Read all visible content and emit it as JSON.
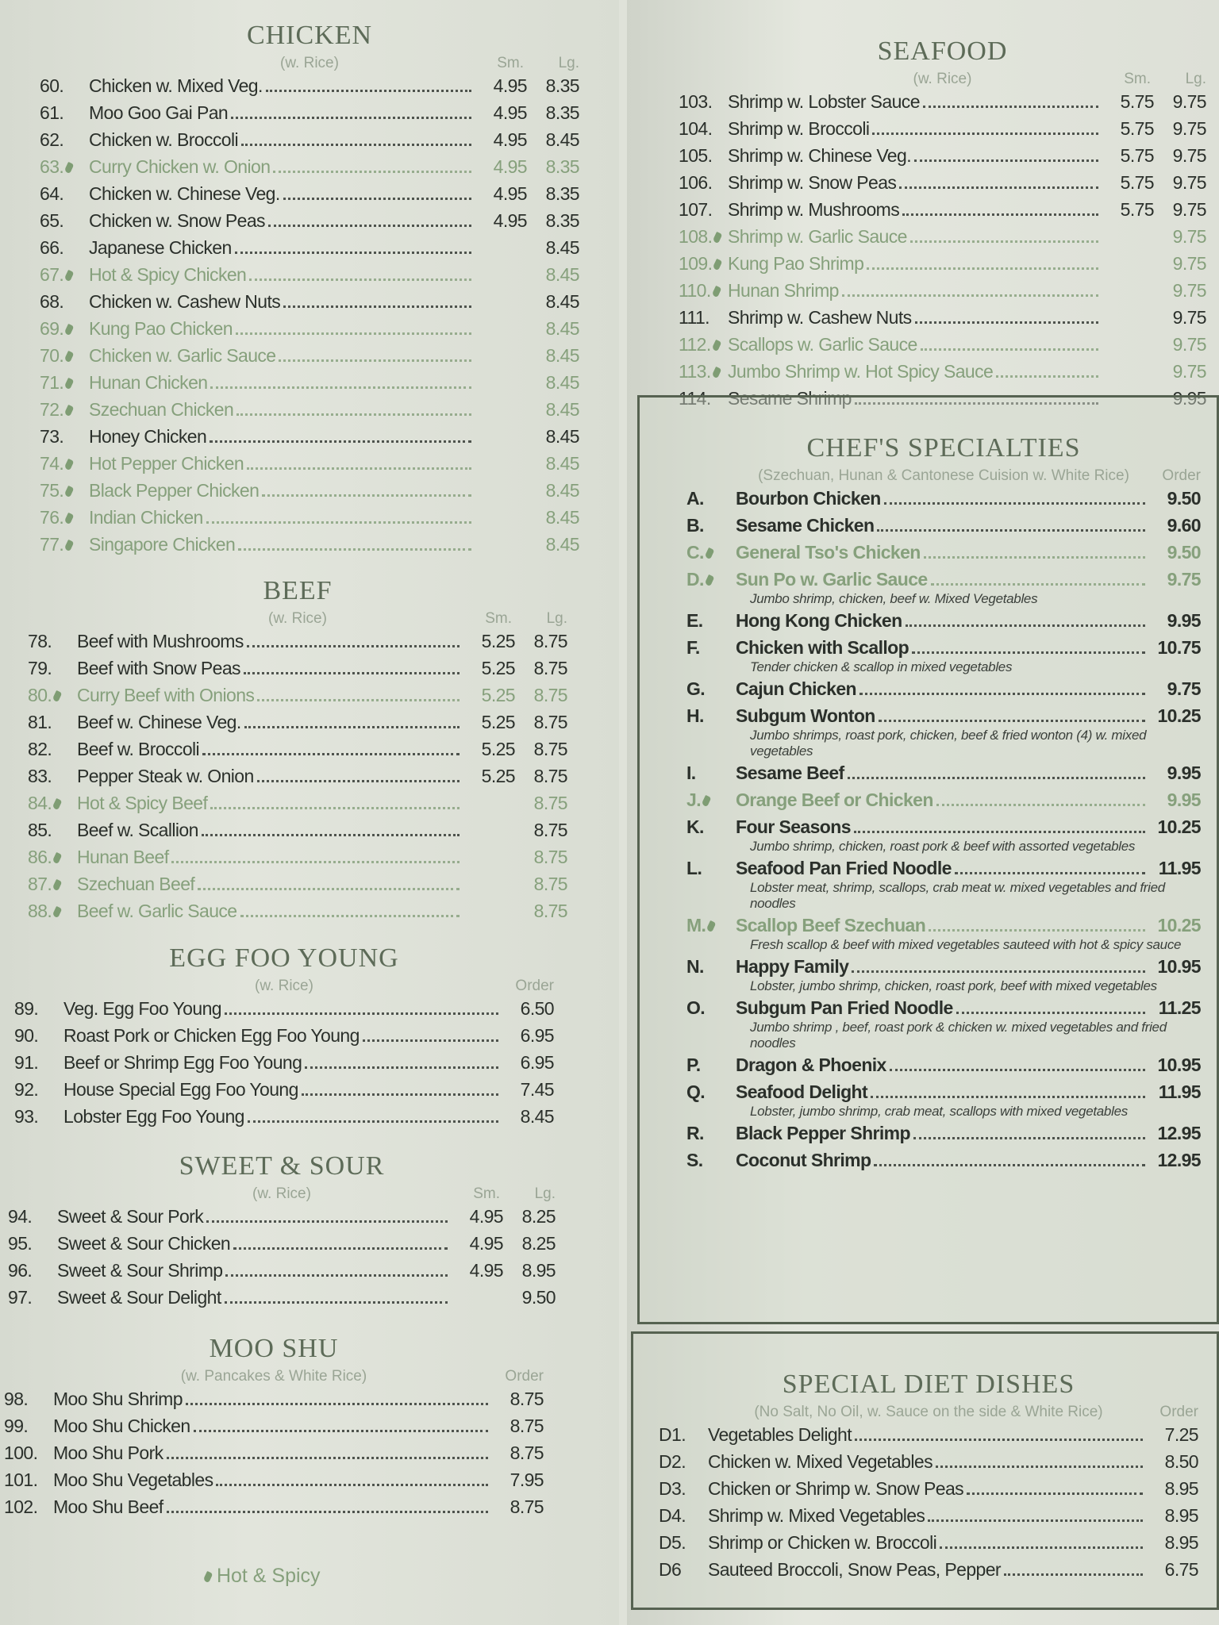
{
  "legend": {
    "label": "Hot & Spicy",
    "icon": "pepper-icon"
  },
  "colors": {
    "text": "#2b302b",
    "spicy": "#86a07c",
    "heading": "#5d6b58",
    "box_border": "#566251"
  },
  "sections": {
    "chicken": {
      "title": "CHICKEN",
      "subtitle": "(w. Rice)",
      "col1": "Sm.",
      "col2": "Lg.",
      "items": [
        {
          "num": "60.",
          "name": "Chicken w. Mixed Veg.",
          "sm": "4.95",
          "lg": "8.35"
        },
        {
          "num": "61.",
          "name": "Moo Goo Gai Pan",
          "sm": "4.95",
          "lg": "8.35"
        },
        {
          "num": "62.",
          "name": "Chicken w. Broccoli",
          "sm": "4.95",
          "lg": "8.45"
        },
        {
          "num": "63.",
          "name": "Curry Chicken w. Onion",
          "sm": "4.95",
          "lg": "8.35",
          "spicy": true
        },
        {
          "num": "64.",
          "name": "Chicken w. Chinese Veg.",
          "sm": "4.95",
          "lg": "8.35"
        },
        {
          "num": "65.",
          "name": "Chicken w. Snow Peas",
          "sm": "4.95",
          "lg": "8.35"
        },
        {
          "num": "66.",
          "name": "Japanese Chicken",
          "sm": "",
          "lg": "8.45"
        },
        {
          "num": "67.",
          "name": "Hot & Spicy Chicken",
          "sm": "",
          "lg": "8.45",
          "spicy": true
        },
        {
          "num": "68.",
          "name": "Chicken w. Cashew Nuts",
          "sm": "",
          "lg": "8.45"
        },
        {
          "num": "69.",
          "name": "Kung Pao Chicken",
          "sm": "",
          "lg": "8.45",
          "spicy": true
        },
        {
          "num": "70.",
          "name": "Chicken w. Garlic Sauce",
          "sm": "",
          "lg": "8.45",
          "spicy": true
        },
        {
          "num": "71.",
          "name": "Hunan Chicken",
          "sm": "",
          "lg": "8.45",
          "spicy": true
        },
        {
          "num": "72.",
          "name": "Szechuan Chicken",
          "sm": "",
          "lg": "8.45",
          "spicy": true
        },
        {
          "num": "73.",
          "name": "Honey Chicken",
          "sm": "",
          "lg": "8.45"
        },
        {
          "num": "74.",
          "name": "Hot Pepper Chicken",
          "sm": "",
          "lg": "8.45",
          "spicy": true
        },
        {
          "num": "75.",
          "name": "Black Pepper Chicken",
          "sm": "",
          "lg": "8.45",
          "spicy": true
        },
        {
          "num": "76.",
          "name": "Indian Chicken",
          "sm": "",
          "lg": "8.45",
          "spicy": true
        },
        {
          "num": "77.",
          "name": "Singapore Chicken",
          "sm": "",
          "lg": "8.45",
          "spicy": true
        }
      ]
    },
    "beef": {
      "title": "BEEF",
      "subtitle": "(w. Rice)",
      "col1": "Sm.",
      "col2": "Lg.",
      "items": [
        {
          "num": "78.",
          "name": "Beef with Mushrooms",
          "sm": "5.25",
          "lg": "8.75"
        },
        {
          "num": "79.",
          "name": "Beef with Snow Peas",
          "sm": "5.25",
          "lg": "8.75"
        },
        {
          "num": "80.",
          "name": "Curry Beef with Onions",
          "sm": "5.25",
          "lg": "8.75",
          "spicy": true
        },
        {
          "num": "81.",
          "name": "Beef w. Chinese Veg.",
          "sm": "5.25",
          "lg": "8.75"
        },
        {
          "num": "82.",
          "name": "Beef w. Broccoli",
          "sm": "5.25",
          "lg": "8.75"
        },
        {
          "num": "83.",
          "name": "Pepper Steak w. Onion",
          "sm": "5.25",
          "lg": "8.75"
        },
        {
          "num": "84.",
          "name": "Hot & Spicy Beef",
          "sm": "",
          "lg": "8.75",
          "spicy": true
        },
        {
          "num": "85.",
          "name": "Beef w. Scallion",
          "sm": "",
          "lg": "8.75"
        },
        {
          "num": "86.",
          "name": "Hunan Beef",
          "sm": "",
          "lg": "8.75",
          "spicy": true
        },
        {
          "num": "87.",
          "name": "Szechuan Beef",
          "sm": "",
          "lg": "8.75",
          "spicy": true
        },
        {
          "num": "88.",
          "name": "Beef w. Garlic Sauce",
          "sm": "",
          "lg": "8.75",
          "spicy": true
        }
      ]
    },
    "egg_foo_young": {
      "title": "EGG FOO YOUNG",
      "subtitle": "(w. Rice)",
      "col2": "Order",
      "items": [
        {
          "num": "89.",
          "name": "Veg. Egg Foo Young",
          "lg": "6.50"
        },
        {
          "num": "90.",
          "name": "Roast Pork or Chicken Egg Foo Young",
          "lg": "6.95"
        },
        {
          "num": "91.",
          "name": "Beef or Shrimp Egg Foo Young",
          "lg": "6.95"
        },
        {
          "num": "92.",
          "name": "House Special Egg Foo Young",
          "lg": "7.45"
        },
        {
          "num": "93.",
          "name": "Lobster Egg Foo Young",
          "lg": "8.45"
        }
      ]
    },
    "sweet_sour": {
      "title": "SWEET & SOUR",
      "subtitle": "(w. Rice)",
      "col1": "Sm.",
      "col2": "Lg.",
      "items": [
        {
          "num": "94.",
          "name": "Sweet & Sour Pork",
          "sm": "4.95",
          "lg": "8.25"
        },
        {
          "num": "95.",
          "name": "Sweet & Sour Chicken",
          "sm": "4.95",
          "lg": "8.25"
        },
        {
          "num": "96.",
          "name": "Sweet & Sour Shrimp",
          "sm": "4.95",
          "lg": "8.95"
        },
        {
          "num": "97.",
          "name": "Sweet & Sour Delight",
          "sm": "",
          "lg": "9.50"
        }
      ]
    },
    "moo_shu": {
      "title": "MOO SHU",
      "subtitle": "(w. Pancakes & White Rice)",
      "col2": "Order",
      "items": [
        {
          "num": "98.",
          "name": "Moo Shu Shrimp",
          "lg": "8.75"
        },
        {
          "num": "99.",
          "name": "Moo Shu Chicken",
          "lg": "8.75"
        },
        {
          "num": "100.",
          "name": "Moo Shu Pork",
          "lg": "8.75"
        },
        {
          "num": "101.",
          "name": "Moo Shu Vegetables",
          "lg": "7.95"
        },
        {
          "num": "102.",
          "name": "Moo Shu Beef",
          "lg": "8.75"
        }
      ]
    },
    "seafood": {
      "title": "SEAFOOD",
      "subtitle": "(w. Rice)",
      "col1": "Sm.",
      "col2": "Lg.",
      "items": [
        {
          "num": "103.",
          "name": "Shrimp w. Lobster Sauce",
          "sm": "5.75",
          "lg": "9.75"
        },
        {
          "num": "104.",
          "name": "Shrimp w. Broccoli",
          "sm": "5.75",
          "lg": "9.75"
        },
        {
          "num": "105.",
          "name": "Shrimp w. Chinese Veg.",
          "sm": "5.75",
          "lg": "9.75"
        },
        {
          "num": "106.",
          "name": "Shrimp w. Snow Peas",
          "sm": "5.75",
          "lg": "9.75"
        },
        {
          "num": "107.",
          "name": "Shrimp w. Mushrooms",
          "sm": "5.75",
          "lg": "9.75"
        },
        {
          "num": "108.",
          "name": "Shrimp w. Garlic Sauce",
          "sm": "",
          "lg": "9.75",
          "spicy": true
        },
        {
          "num": "109.",
          "name": "Kung Pao Shrimp",
          "sm": "",
          "lg": "9.75",
          "spicy": true
        },
        {
          "num": "110.",
          "name": "Hunan Shrimp",
          "sm": "",
          "lg": "9.75",
          "spicy": true
        },
        {
          "num": "111.",
          "name": "Shrimp w. Cashew Nuts",
          "sm": "",
          "lg": "9.75"
        },
        {
          "num": "112.",
          "name": "Scallops w. Garlic Sauce",
          "sm": "",
          "lg": "9.75",
          "spicy": true
        },
        {
          "num": "113.",
          "name": "Jumbo Shrimp w. Hot Spicy Sauce",
          "sm": "",
          "lg": "9.75",
          "spicy": true
        },
        {
          "num": "114.",
          "name": "Sesame Shrimp",
          "sm": "",
          "lg": "9.95"
        }
      ]
    },
    "chefs": {
      "title": "CHEF'S SPECIALTIES",
      "subtitle": "(Szechuan, Hunan & Cantonese Cuision w. White Rice)",
      "col2": "Order",
      "items": [
        {
          "num": "A.",
          "name": "Bourbon Chicken",
          "lg": "9.50"
        },
        {
          "num": "B.",
          "name": "Sesame Chicken",
          "lg": "9.60"
        },
        {
          "num": "C.",
          "name": "General Tso's Chicken",
          "lg": "9.50",
          "spicy": true
        },
        {
          "num": "D.",
          "name": "Sun Po w. Garlic Sauce",
          "lg": "9.75",
          "spicy": true,
          "desc": "Jumbo shrimp, chicken, beef w. Mixed Vegetables"
        },
        {
          "num": "E.",
          "name": "Hong Kong Chicken",
          "lg": "9.95"
        },
        {
          "num": "F.",
          "name": "Chicken with Scallop",
          "lg": "10.75",
          "desc": "Tender chicken & scallop in mixed vegetables"
        },
        {
          "num": "G.",
          "name": "Cajun Chicken",
          "lg": "9.75"
        },
        {
          "num": "H.",
          "name": "Subgum Wonton",
          "lg": "10.25",
          "desc": "Jumbo shrimps, roast pork, chicken, beef & fried wonton (4) w. mixed vegetables"
        },
        {
          "num": "I.",
          "name": "Sesame Beef",
          "lg": "9.95"
        },
        {
          "num": "J.",
          "name": "Orange Beef or Chicken",
          "lg": "9.95",
          "spicy": true
        },
        {
          "num": "K.",
          "name": "Four Seasons",
          "lg": "10.25",
          "desc": "Jumbo shrimp, chicken, roast pork & beef with assorted vegetables"
        },
        {
          "num": "L.",
          "name": "Seafood Pan Fried Noodle",
          "lg": "11.95",
          "desc": "Lobster meat, shrimp, scallops, crab meat w. mixed vegetables and fried noodles"
        },
        {
          "num": "M.",
          "name": "Scallop Beef Szechuan",
          "lg": "10.25",
          "spicy": true,
          "desc": "Fresh scallop & beef with mixed vegetables sauteed with hot & spicy sauce"
        },
        {
          "num": "N.",
          "name": "Happy Family",
          "lg": "10.95",
          "desc": "Lobster, jumbo shrimp, chicken, roast pork, beef with mixed vegetables"
        },
        {
          "num": "O.",
          "name": "Subgum Pan Fried Noodle",
          "lg": "11.25",
          "desc": "Jumbo shrimp , beef, roast pork & chicken w. mixed vegetables and fried noodles"
        },
        {
          "num": "P.",
          "name": "Dragon & Phoenix",
          "lg": "10.95"
        },
        {
          "num": "Q.",
          "name": "Seafood Delight",
          "lg": "11.95",
          "desc": "Lobster, jumbo shrimp, crab meat, scallops with mixed vegetables"
        },
        {
          "num": "R.",
          "name": "Black Pepper Shrimp",
          "lg": "12.95"
        },
        {
          "num": "S.",
          "name": "Coconut Shrimp",
          "lg": "12.95"
        }
      ]
    },
    "diet": {
      "title": "SPECIAL DIET DISHES",
      "subtitle": "(No Salt, No Oil, w. Sauce on the side & White Rice)",
      "col2": "Order",
      "items": [
        {
          "num": "D1.",
          "name": "Vegetables Delight",
          "lg": "7.25"
        },
        {
          "num": "D2.",
          "name": "Chicken w. Mixed Vegetables",
          "lg": "8.50"
        },
        {
          "num": "D3.",
          "name": "Chicken or Shrimp w. Snow Peas",
          "lg": "8.95"
        },
        {
          "num": "D4.",
          "name": "Shrimp w. Mixed Vegetables",
          "lg": "8.95"
        },
        {
          "num": "D5.",
          "name": "Shrimp or Chicken w. Broccoli",
          "lg": "8.95"
        },
        {
          "num": "D6",
          "name": "Sauteed Broccoli, Snow Peas, Pepper",
          "lg": "6.75"
        }
      ]
    }
  }
}
